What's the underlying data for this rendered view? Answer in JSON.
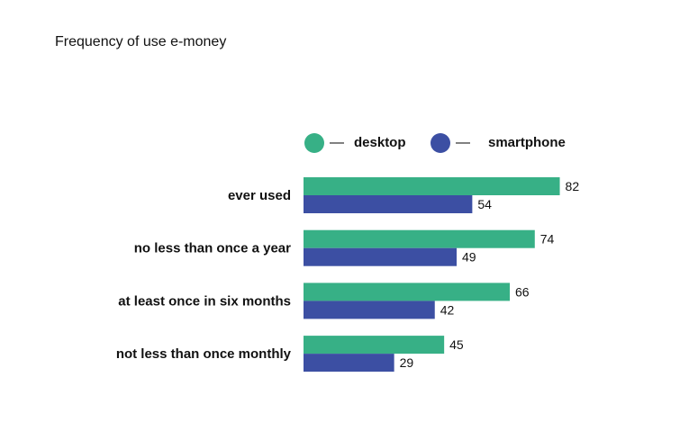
{
  "chart_data": {
    "type": "bar",
    "orientation": "horizontal",
    "title": "Frequency of use e-money",
    "xlabel": "",
    "ylabel": "",
    "categories": [
      "ever used",
      "no less than once a year",
      "at least once in six months",
      "not less than once monthly"
    ],
    "series": [
      {
        "name": "desktop",
        "values": [
          82,
          74,
          66,
          45
        ],
        "color": "#37b086"
      },
      {
        "name": "smartphone",
        "values": [
          54,
          49,
          42,
          29
        ],
        "color": "#3c4fa3"
      }
    ],
    "xlim": [
      0,
      100
    ],
    "grid": false,
    "legend": {
      "placement": "top",
      "separator": "—",
      "items": [
        {
          "label": "desktop",
          "color": "#37b086",
          "marker": "circle"
        },
        {
          "label": "smartphone",
          "color": "#3c4fa3",
          "marker": "circle"
        }
      ]
    },
    "data_labels": true
  }
}
